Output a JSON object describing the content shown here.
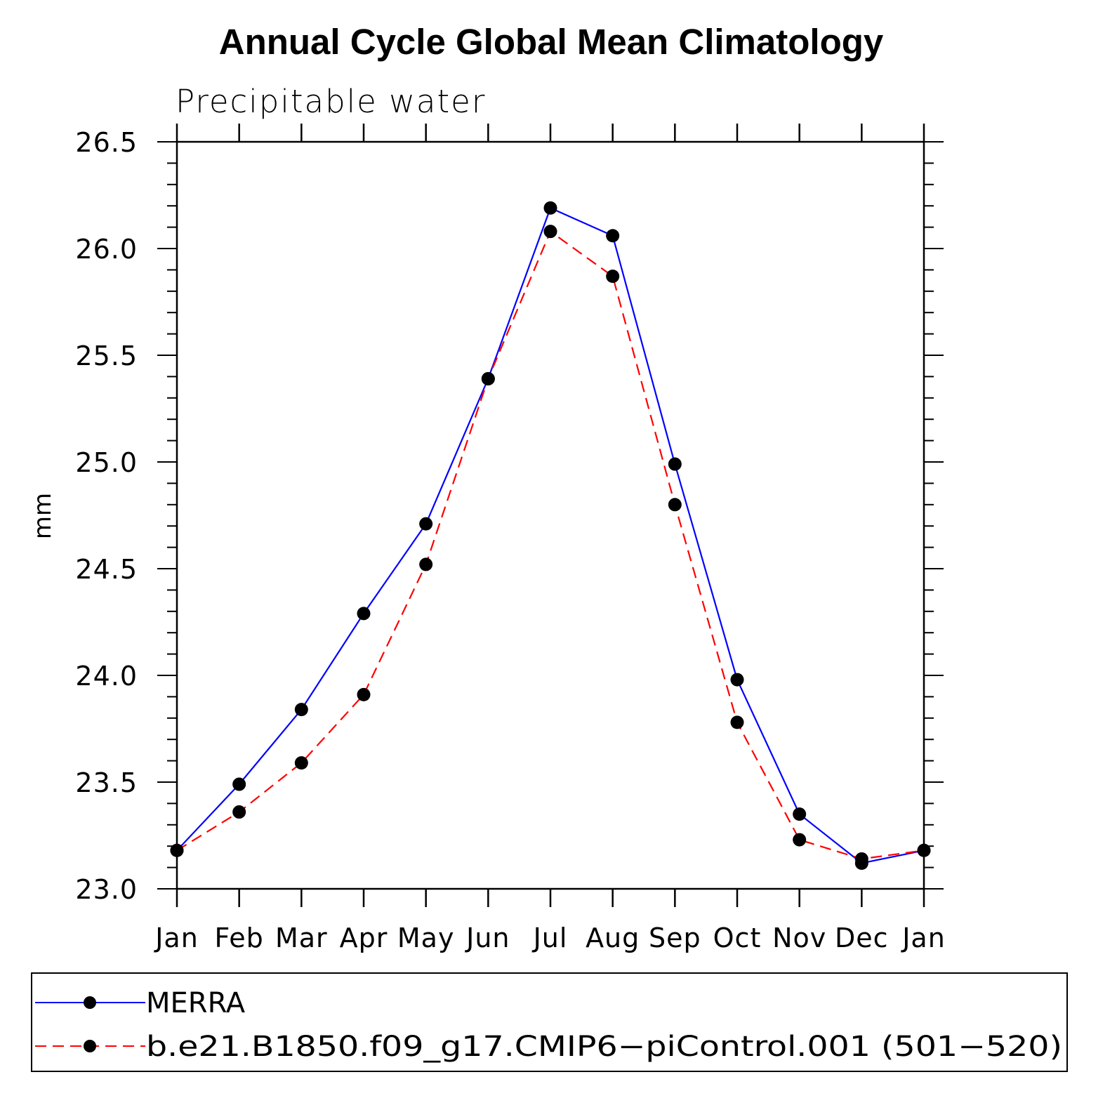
{
  "chart_data": {
    "type": "line",
    "title": "Annual Cycle Global Mean Climatology",
    "subtitle": "Precipitable water",
    "xlabel": "",
    "ylabel": "mm",
    "categories": [
      "Jan",
      "Feb",
      "Mar",
      "Apr",
      "May",
      "Jun",
      "Jul",
      "Aug",
      "Sep",
      "Oct",
      "Nov",
      "Dec",
      "Jan"
    ],
    "ylim": [
      23.0,
      26.5
    ],
    "yticks": [
      "23.0",
      "23.5",
      "24.0",
      "24.5",
      "25.0",
      "25.5",
      "26.0",
      "26.5"
    ],
    "series": [
      {
        "name": "MERRA",
        "color": "#0000ff",
        "dash": "solid",
        "marker": "filled-circle",
        "values": [
          23.18,
          23.49,
          23.84,
          24.29,
          24.71,
          25.39,
          26.19,
          26.06,
          24.99,
          23.98,
          23.35,
          23.12,
          23.18
        ]
      },
      {
        "name": "b.e21.B1850.f09_g17.CMIP6−piControl.001 (501−520)",
        "color": "#ff0000",
        "dash": "dashed",
        "marker": "filled-circle",
        "values": [
          23.18,
          23.36,
          23.59,
          23.91,
          24.52,
          25.39,
          26.08,
          25.87,
          24.8,
          23.78,
          23.23,
          23.14,
          23.18
        ]
      }
    ],
    "grid": false,
    "legend": "bottom"
  }
}
